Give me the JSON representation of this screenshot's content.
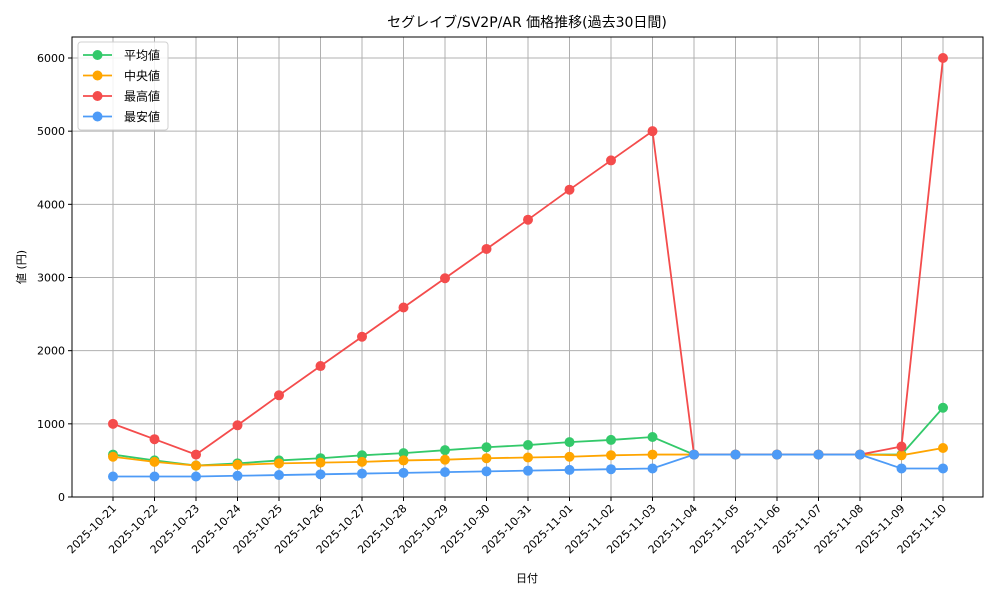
{
  "chart_data": {
    "type": "line",
    "title": "セグレイブ/SV2P/AR 価格推移(過去30日間)",
    "xlabel": "日付",
    "ylabel": "値 (円)",
    "ylim": [
      0,
      6300
    ],
    "yticks": [
      0,
      1000,
      2000,
      3000,
      4000,
      5000,
      6000
    ],
    "grid": true,
    "legend_position": "upper left",
    "x": [
      "2025-10-21",
      "2025-10-22",
      "2025-10-23",
      "2025-10-24",
      "2025-10-25",
      "2025-10-26",
      "2025-10-27",
      "2025-10-28",
      "2025-10-29",
      "2025-10-30",
      "2025-10-31",
      "2025-11-01",
      "2025-11-02",
      "2025-11-03",
      "2025-11-04",
      "2025-11-05",
      "2025-11-06",
      "2025-11-07",
      "2025-11-08",
      "2025-11-09",
      "2025-11-10"
    ],
    "series": [
      {
        "name": "平均値",
        "color": "#33c96a",
        "values": [
          580,
          500,
          430,
          460,
          500,
          530,
          570,
          600,
          640,
          680,
          710,
          750,
          780,
          820,
          580,
          580,
          580,
          580,
          580,
          580,
          1220
        ]
      },
      {
        "name": "中央値",
        "color": "#ffa500",
        "values": [
          550,
          480,
          430,
          440,
          460,
          470,
          480,
          500,
          510,
          530,
          540,
          550,
          570,
          580,
          580,
          580,
          580,
          580,
          580,
          570,
          670
        ]
      },
      {
        "name": "最高値",
        "color": "#f44c4c",
        "values": [
          1000,
          790,
          580,
          980,
          1390,
          1790,
          2190,
          2590,
          2990,
          3390,
          3790,
          4200,
          4600,
          5000,
          580,
          580,
          580,
          580,
          580,
          690,
          6000
        ]
      },
      {
        "name": "最安値",
        "color": "#4d9bf7",
        "values": [
          280,
          280,
          280,
          290,
          300,
          310,
          320,
          330,
          340,
          350,
          360,
          370,
          380,
          390,
          580,
          580,
          580,
          580,
          580,
          390,
          390
        ]
      }
    ]
  }
}
